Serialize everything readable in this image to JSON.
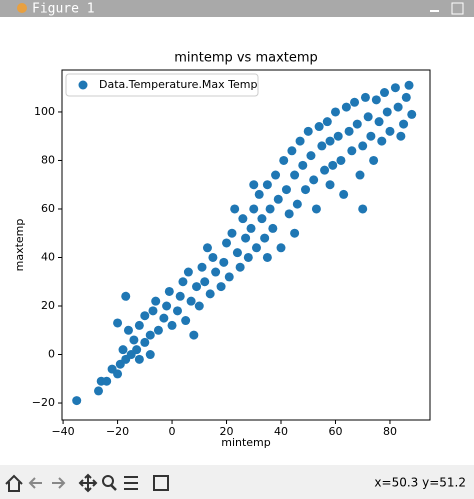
{
  "window": {
    "title": "Figure 1",
    "status": "x=50.3 y=51.2"
  },
  "chart_data": {
    "type": "scatter",
    "title": "mintemp vs maxtemp",
    "x_label": "mintemp",
    "y_label": "maxtemp",
    "legend_position": "upper left",
    "series": [
      {
        "name": "Data.Temperature.Max Temp",
        "color": "#1f77b4",
        "x": [
          -35,
          -27,
          -26,
          -24,
          -22,
          -20,
          -19,
          -17,
          -15,
          -13,
          -12,
          -18,
          -14,
          -10,
          -16,
          -8,
          -12,
          -5,
          -10,
          -20,
          -7,
          -3,
          -17,
          -6,
          -2,
          0,
          2,
          -1,
          3,
          5,
          4,
          7,
          6,
          9,
          10,
          11,
          12,
          14,
          15,
          13,
          16,
          18,
          20,
          19,
          21,
          22,
          24,
          25,
          26,
          27,
          28,
          30,
          29,
          31,
          32,
          33,
          34,
          35,
          36,
          37,
          38,
          39,
          40,
          41,
          42,
          43,
          44,
          45,
          46,
          47,
          48,
          49,
          50,
          51,
          52,
          53,
          54,
          55,
          56,
          57,
          58,
          59,
          60,
          61,
          62,
          63,
          64,
          65,
          66,
          67,
          68,
          70,
          70,
          71,
          72,
          73,
          75,
          76,
          77,
          78,
          79,
          80,
          82,
          83,
          85,
          86,
          87,
          88,
          84,
          69,
          23,
          30,
          -8,
          8,
          35,
          45,
          58,
          74
        ],
        "values": [
          -19,
          -15,
          -11,
          -11,
          -6,
          -8,
          -4,
          -2,
          0,
          2,
          -2,
          2,
          6,
          5,
          10,
          8,
          12,
          10,
          16,
          13,
          18,
          15,
          24,
          22,
          20,
          12,
          18,
          26,
          24,
          14,
          30,
          22,
          34,
          28,
          20,
          36,
          30,
          25,
          40,
          44,
          34,
          28,
          46,
          38,
          32,
          50,
          42,
          36,
          56,
          48,
          40,
          60,
          52,
          44,
          66,
          56,
          48,
          70,
          60,
          52,
          74,
          64,
          44,
          80,
          68,
          58,
          84,
          74,
          62,
          88,
          78,
          68,
          92,
          82,
          72,
          60,
          94,
          86,
          76,
          96,
          88,
          78,
          100,
          90,
          80,
          66,
          102,
          92,
          84,
          104,
          95,
          86,
          60,
          106,
          98,
          90,
          105,
          96,
          88,
          108,
          100,
          92,
          110,
          102,
          95,
          106,
          111,
          99,
          90,
          74,
          60,
          70,
          0,
          8,
          40,
          50,
          70,
          80
        ]
      }
    ],
    "xlim": [
      -40.4,
      94.7
    ],
    "ylim": [
      -27,
      117.3
    ],
    "xticks": [
      {
        "value": -40,
        "label": "−40"
      },
      {
        "value": -20,
        "label": "−20"
      },
      0,
      20,
      40,
      60,
      80
    ],
    "yticks": [
      {
        "value": -20,
        "label": "−20"
      },
      0,
      20,
      40,
      60,
      80,
      100
    ]
  }
}
